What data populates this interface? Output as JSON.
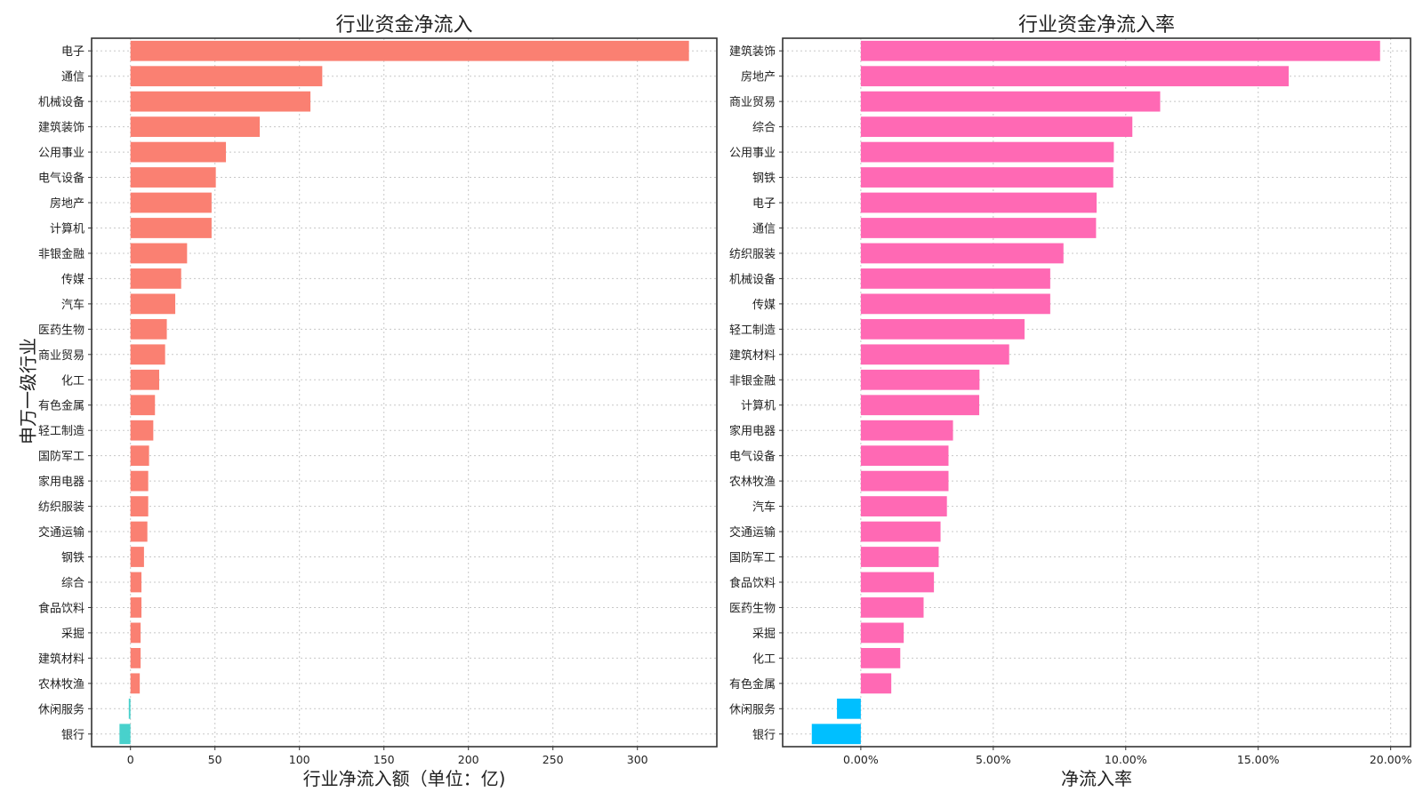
{
  "chart_data": [
    {
      "type": "bar",
      "orientation": "horizontal",
      "title": "行业资金净流入",
      "xlabel": "行业净流入额（单位：亿)",
      "ylabel": "申万一级行业",
      "xlim": [
        -23,
        347
      ],
      "xticks": [
        0,
        50,
        100,
        150,
        200,
        250,
        300
      ],
      "xtick_labels": [
        "0",
        "50",
        "100",
        "150",
        "200",
        "250",
        "300"
      ],
      "grid": true,
      "colors": {
        "positive": "#fa8072",
        "negative": "#48d1cc"
      },
      "categories": [
        "电子",
        "通信",
        "机械设备",
        "建筑装饰",
        "公用事业",
        "电气设备",
        "房地产",
        "计算机",
        "非银金融",
        "传媒",
        "汽车",
        "医药生物",
        "商业贸易",
        "化工",
        "有色金属",
        "轻工制造",
        "国防军工",
        "家用电器",
        "纺织服装",
        "交通运输",
        "钢铁",
        "综合",
        "食品饮料",
        "采掘",
        "建筑材料",
        "农林牧渔",
        "休闲服务",
        "银行"
      ],
      "values": [
        330.5,
        113.5,
        106.5,
        76.5,
        56.5,
        50.5,
        48,
        48,
        33.5,
        30,
        26.5,
        21.5,
        20.5,
        17,
        14.5,
        13.5,
        11,
        10.5,
        10.5,
        10,
        8,
        6.5,
        6.5,
        6,
        6,
        5.5,
        -1,
        -6.5
      ]
    },
    {
      "type": "bar",
      "orientation": "horizontal",
      "title": "行业资金净流入率",
      "xlabel": "净流入率",
      "xlim": [
        -0.0295,
        0.2075
      ],
      "xticks": [
        0,
        0.05,
        0.1,
        0.15,
        0.2
      ],
      "xtick_labels": [
        "0.00%",
        "5.00%",
        "10.00%",
        "15.00%",
        "20.00%"
      ],
      "grid": true,
      "colors": {
        "positive": "#ff69b4",
        "negative": "#00bfff"
      },
      "categories": [
        "建筑装饰",
        "房地产",
        "商业贸易",
        "综合",
        "公用事业",
        "钢铁",
        "电子",
        "通信",
        "纺织服装",
        "机械设备",
        "传媒",
        "轻工制造",
        "建筑材料",
        "非银金融",
        "计算机",
        "家用电器",
        "电气设备",
        "农林牧渔",
        "汽车",
        "交通运输",
        "国防军工",
        "食品饮料",
        "医药生物",
        "采掘",
        "化工",
        "有色金属",
        "休闲服务",
        "银行"
      ],
      "values": [
        0.196,
        0.1615,
        0.113,
        0.1025,
        0.0955,
        0.0953,
        0.089,
        0.0888,
        0.0765,
        0.0715,
        0.0715,
        0.0618,
        0.056,
        0.0448,
        0.0447,
        0.0348,
        0.0331,
        0.0331,
        0.0325,
        0.0301,
        0.0294,
        0.0276,
        0.0237,
        0.0162,
        0.0149,
        0.0115,
        -0.009,
        -0.0185
      ]
    }
  ]
}
